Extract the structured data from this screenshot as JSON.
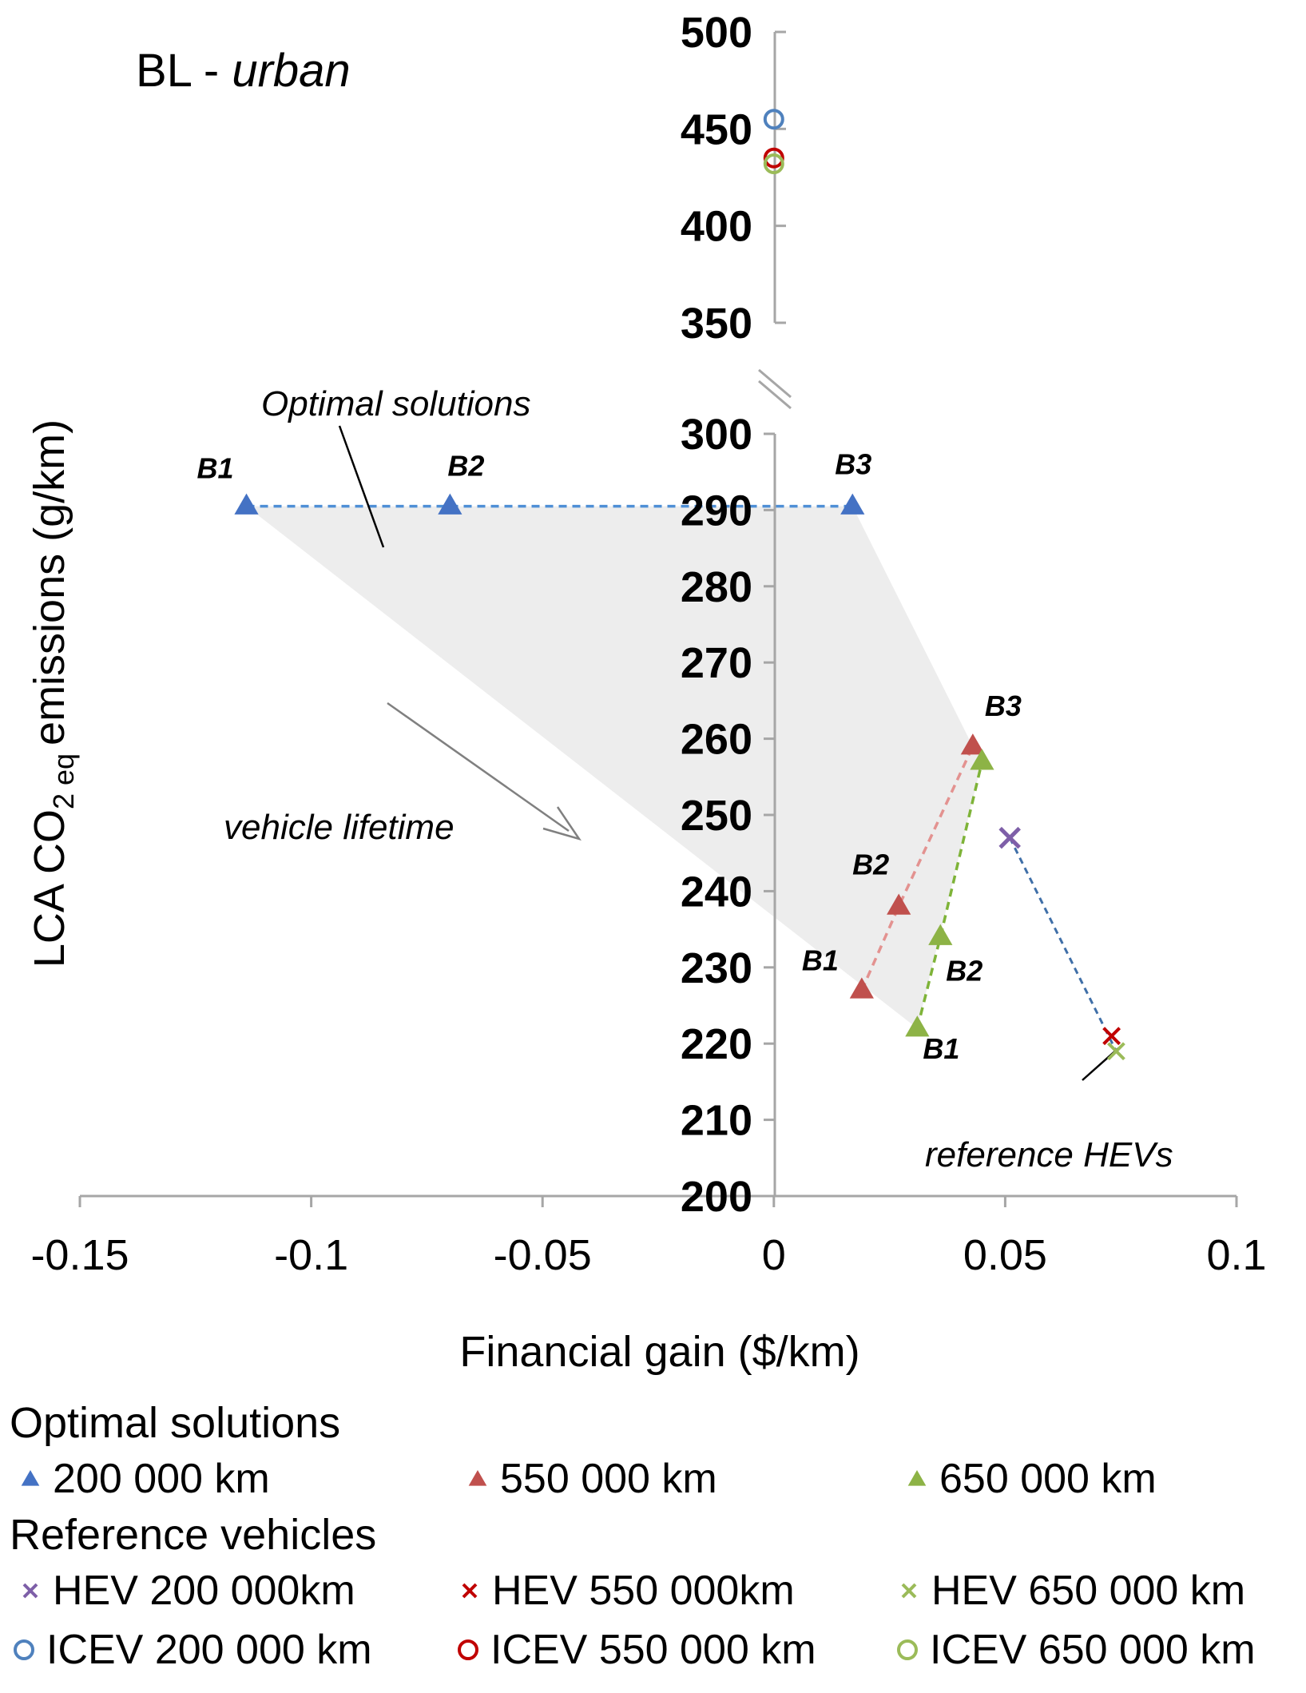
{
  "chart_data": {
    "type": "scatter",
    "title": "BL - urban",
    "title_parts": {
      "plain": "BL - ",
      "italic": "urban"
    },
    "xlabel": "Financial gain ($/km)",
    "ylabel": "LCA CO2 eq emissions (g/km)",
    "ylabel_parts": {
      "a": "LCA CO",
      "sub": "2 eq",
      "b": "emissions (g/km)"
    },
    "xlim": [
      -0.15,
      0.1
    ],
    "x_ticks": [
      "-0.15",
      "-0.1",
      "-0.05",
      "0",
      "0.05",
      "0.1"
    ],
    "ylim_lower": [
      200,
      300
    ],
    "ylim_upper": [
      350,
      500
    ],
    "axis_break": "between 300 and 350",
    "y_ticks_lower": [
      "200",
      "210",
      "220",
      "230",
      "240",
      "250",
      "260",
      "270",
      "280",
      "290",
      "300"
    ],
    "y_ticks_upper": [
      "350",
      "400",
      "450",
      "500"
    ],
    "series": [
      {
        "name": "200 000 km",
        "group": "Optimal solutions",
        "marker": "triangle",
        "color": "#4472C4",
        "line_color": "#4F8FD6",
        "points": [
          {
            "x": -0.114,
            "y": 290.5,
            "label": "B1"
          },
          {
            "x": -0.07,
            "y": 290.5,
            "label": "B2"
          },
          {
            "x": 0.017,
            "y": 290.5,
            "label": "B3"
          }
        ]
      },
      {
        "name": "550 000 km",
        "group": "Optimal solutions",
        "marker": "triangle",
        "color": "#C0504D",
        "line_color": "#E39290",
        "points": [
          {
            "x": 0.019,
            "y": 227,
            "label": "B1"
          },
          {
            "x": 0.027,
            "y": 238,
            "label": "B2"
          },
          {
            "x": 0.043,
            "y": 259,
            "label": "B3"
          }
        ]
      },
      {
        "name": "650 000 km",
        "group": "Optimal solutions",
        "marker": "triangle",
        "color": "#8DB346",
        "line_color": "#7EB338",
        "points": [
          {
            "x": 0.031,
            "y": 222,
            "label": "B1"
          },
          {
            "x": 0.036,
            "y": 234,
            "label": "B2"
          },
          {
            "x": 0.045,
            "y": 257,
            "label": "B3"
          }
        ]
      },
      {
        "name": "HEV 200 000km",
        "group": "Reference vehicles",
        "marker": "x",
        "color": "#7E5FA8",
        "points": [
          {
            "x": 0.051,
            "y": 247
          }
        ]
      },
      {
        "name": "HEV 550 000km",
        "group": "Reference vehicles",
        "marker": "x",
        "color": "#C00000",
        "points": [
          {
            "x": 0.073,
            "y": 221
          }
        ]
      },
      {
        "name": "HEV 650 000 km",
        "group": "Reference vehicles",
        "marker": "x",
        "color": "#9BBB59",
        "points": [
          {
            "x": 0.074,
            "y": 219
          }
        ]
      },
      {
        "name": "ICEV 200 000 km",
        "group": "Reference vehicles",
        "marker": "circle",
        "color": "#4F81BD",
        "points": [
          {
            "x": 0.0,
            "y": 455
          }
        ]
      },
      {
        "name": "ICEV 550 000 km",
        "group": "Reference vehicles",
        "marker": "circle",
        "color": "#C00000",
        "points": [
          {
            "x": 0.0,
            "y": 435
          }
        ]
      },
      {
        "name": "ICEV 650 000 km",
        "group": "Reference vehicles",
        "marker": "circle",
        "color": "#9BBB59",
        "points": [
          {
            "x": 0.0,
            "y": 432
          }
        ]
      }
    ],
    "hev_connector_color": "#3F6FA8",
    "annotations": [
      {
        "text": "Optimal solutions"
      },
      {
        "text": "vehicle lifetime"
      },
      {
        "text": "reference HEVs"
      }
    ],
    "legend": {
      "position": "bottom",
      "groups": [
        {
          "heading": "Optimal solutions",
          "items": [
            {
              "label": "200 000 km",
              "marker": "triangle",
              "color": "#4472C4"
            },
            {
              "label": "550 000 km",
              "marker": "triangle",
              "color": "#C0504D"
            },
            {
              "label": "650 000 km",
              "marker": "triangle",
              "color": "#8DB346"
            }
          ]
        },
        {
          "heading": "Reference vehicles",
          "items": [
            {
              "label": "HEV 200 000km",
              "marker": "x",
              "color": "#7E5FA8"
            },
            {
              "label": "HEV 550 000km",
              "marker": "x",
              "color": "#C00000"
            },
            {
              "label": "HEV 650 000 km",
              "marker": "x",
              "color": "#9BBB59"
            },
            {
              "label": "ICEV 200 000 km",
              "marker": "circle",
              "color": "#4F81BD"
            },
            {
              "label": "ICEV 550 000 km",
              "marker": "circle",
              "color": "#C00000"
            },
            {
              "label": "ICEV 650 000 km",
              "marker": "circle",
              "color": "#9BBB59"
            }
          ]
        }
      ]
    }
  }
}
